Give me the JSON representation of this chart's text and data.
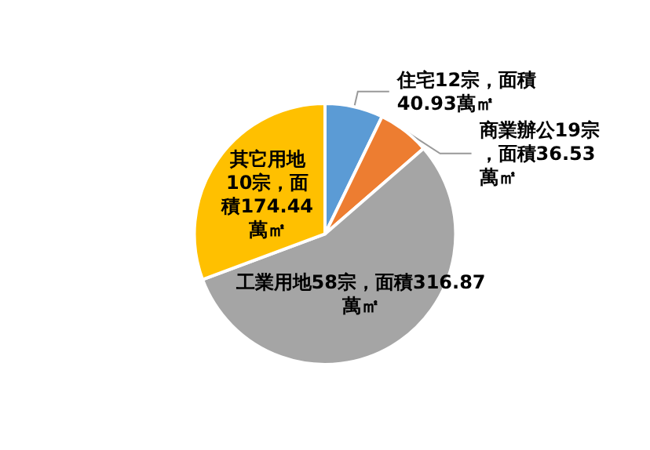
{
  "chart_data": {
    "type": "pie",
    "categories": [
      "住宅12宗，面積40.93萬㎡",
      "商業辦公19宗，面積36.53萬㎡",
      "工業用地58宗，面積316.87萬㎡",
      "其它用地10宗，面積174.44萬㎡"
    ],
    "values": [
      40.93,
      36.53,
      316.87,
      174.44
    ],
    "colors": [
      "#5b9bd5",
      "#ed7d31",
      "#a5a5a5",
      "#ffc000"
    ]
  }
}
